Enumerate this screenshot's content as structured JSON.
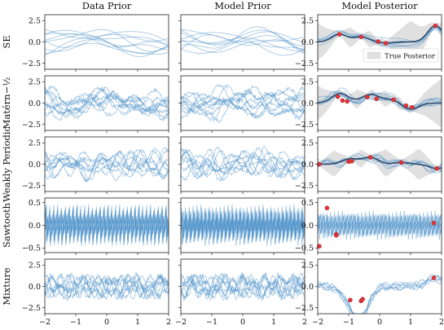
{
  "chart_data": {
    "type": "line",
    "columns": [
      "Data Prior",
      "Model Prior",
      "Model Posterior"
    ],
    "rows": [
      {
        "label": "SE",
        "yticks": [
          2.5,
          0.0,
          -2.5
        ],
        "ytick_labels": [
          "2.5",
          "0.0",
          "−2.5"
        ],
        "ylim": [
          -3.2,
          3.2
        ],
        "kind": "smooth",
        "freq": 1.1,
        "observations": [
          [
            -1.3,
            0.9
          ],
          [
            -0.6,
            0.6
          ],
          [
            -0.05,
            0.05
          ],
          [
            0.2,
            -0.15
          ],
          [
            1.8,
            1.9
          ]
        ]
      },
      {
        "label": "Matérn−½",
        "yticks": [
          2.5,
          0.0,
          -2.5
        ],
        "ytick_labels": [
          "2.5",
          "0.0",
          "−2.5"
        ],
        "ylim": [
          -3.2,
          3.2
        ],
        "kind": "rough",
        "freq": 2.0,
        "observations": [
          [
            -1.35,
            0.75
          ],
          [
            -1.2,
            0.3
          ],
          [
            -1.05,
            0.2
          ],
          [
            -0.4,
            0.7
          ],
          [
            -0.1,
            0.5
          ],
          [
            0.45,
            0.4
          ],
          [
            0.85,
            -0.3
          ],
          [
            1.05,
            -0.5
          ]
        ]
      },
      {
        "label": "Weakly Periodic",
        "yticks": [
          2.5,
          0.0,
          -2.5
        ],
        "ytick_labels": [
          "2.5",
          "0.0",
          "−2.5"
        ],
        "ylim": [
          -3.2,
          3.2
        ],
        "kind": "periodic",
        "freq": 3.5,
        "observations": [
          [
            -1.95,
            0.0
          ],
          [
            -1.0,
            0.3
          ],
          [
            -0.9,
            0.35
          ],
          [
            -0.3,
            0.8
          ],
          [
            0.7,
            0.2
          ],
          [
            1.85,
            -0.5
          ]
        ]
      },
      {
        "label": "Sawtooth",
        "yticks": [
          0.5,
          0.0,
          -0.5
        ],
        "ytick_labels": [
          "0.5",
          "0.0",
          "−0.5"
        ],
        "ylim": [
          -0.6,
          0.6
        ],
        "kind": "sawtooth",
        "freq": 8.0,
        "observations": [
          [
            -1.95,
            -0.46
          ],
          [
            -1.7,
            0.38
          ],
          [
            -1.4,
            -0.2
          ],
          [
            -1.4,
            -0.22
          ],
          [
            1.75,
            0.05
          ]
        ]
      },
      {
        "label": "Mixture",
        "yticks": [
          2.5,
          0.0,
          -2.5
        ],
        "ytick_labels": [
          "2.5",
          "0.0",
          "−2.5"
        ],
        "ylim": [
          -3.2,
          3.2
        ],
        "kind": "mixture",
        "freq": 6.0,
        "observations": [
          [
            -0.95,
            -1.6
          ],
          [
            -0.6,
            -1.7
          ],
          [
            -0.55,
            -1.5
          ],
          [
            1.75,
            1.0
          ]
        ]
      }
    ],
    "x_ticks": [
      -2,
      -1,
      0,
      1,
      2
    ],
    "x_tick_labels": [
      "−2",
      "−1",
      "0",
      "1",
      "2"
    ],
    "xlim": [
      -2,
      2
    ],
    "legend": {
      "label": "True Posterior",
      "location": "right-lower"
    },
    "colors": {
      "samples": "#4a90c8",
      "mean": "#2b4a6e",
      "band": "#a8a8a8",
      "observations": "#e0343a"
    }
  }
}
